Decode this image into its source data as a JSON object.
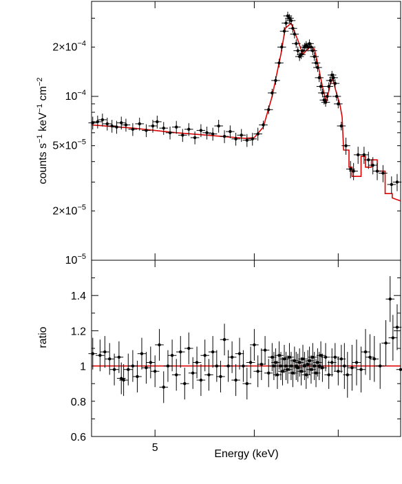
{
  "chart_data": [
    {
      "panel": "spectrum",
      "type": "scatter",
      "scale": "log-log",
      "xlim": [
        4.45,
        7.85
      ],
      "ylim": [
        1e-05,
        0.00038
      ],
      "ylabel_parts": {
        "main": "counts s",
        "exp1": "−1",
        "mid": " keV",
        "exp2": "−1",
        "end": " cm",
        "exp3": "−2"
      },
      "yticks": [
        {
          "value": 1e-05,
          "mant": "",
          "exp": "−5"
        },
        {
          "value": 2e-05,
          "mant": "2×",
          "exp": "−5"
        },
        {
          "value": 5e-05,
          "mant": "5×",
          "exp": "−5"
        },
        {
          "value": 0.0001,
          "mant": "",
          "exp": "−4"
        },
        {
          "value": 0.0002,
          "mant": "2×",
          "exp": "−4"
        }
      ],
      "xtick_values": [
        5,
        6,
        7
      ],
      "model": [
        [
          4.45,
          6.7e-05
        ],
        [
          4.8,
          6.4e-05
        ],
        [
          5.2,
          6e-05
        ],
        [
          5.5,
          5.8e-05
        ],
        [
          5.9,
          5.55e-05
        ],
        [
          6.0,
          5.6e-05
        ],
        [
          6.1,
          6.5e-05
        ],
        [
          6.2,
          0.0001
        ],
        [
          6.3,
          0.00018
        ],
        [
          6.35,
          0.00026
        ],
        [
          6.42,
          0.00028
        ],
        [
          6.5,
          0.00022
        ],
        [
          6.56,
          0.00018
        ],
        [
          6.6,
          0.00019
        ],
        [
          6.65,
          0.0002
        ],
        [
          6.7,
          0.000195
        ],
        [
          6.74,
          0.00016
        ],
        [
          6.8,
          0.000115
        ],
        [
          6.85,
          9.2e-05
        ],
        [
          6.9,
          0.00012
        ],
        [
          6.93,
          0.000128
        ],
        [
          6.97,
          0.000108
        ],
        [
          7.02,
          9e-05
        ],
        [
          7.05,
          7.5e-05
        ],
        [
          7.07,
          4.7e-05
        ],
        [
          7.14,
          4.7e-05
        ],
        [
          7.14,
          3.7e-05
        ],
        [
          7.18,
          3.7e-05
        ],
        [
          7.18,
          3.25e-05
        ],
        [
          7.3,
          3.25e-05
        ],
        [
          7.3,
          4.3e-05
        ],
        [
          7.36,
          4.3e-05
        ],
        [
          7.36,
          3.7e-05
        ],
        [
          7.44,
          3.7e-05
        ],
        [
          7.44,
          4.1e-05
        ],
        [
          7.52,
          4.1e-05
        ],
        [
          7.52,
          3.5e-05
        ],
        [
          7.63,
          3.5e-05
        ],
        [
          7.63,
          2.55e-05
        ],
        [
          7.73,
          2.55e-05
        ],
        [
          7.73,
          2.4e-05
        ],
        [
          7.85,
          2.3e-05
        ]
      ],
      "points": [
        [
          4.46,
          6.9e-05
        ],
        [
          4.5,
          7e-05
        ],
        [
          4.54,
          7.2e-05
        ],
        [
          4.58,
          6.8e-05
        ],
        [
          4.62,
          6.6e-05
        ],
        [
          4.66,
          6.5e-05
        ],
        [
          4.7,
          6.9e-05
        ],
        [
          4.74,
          6.7e-05
        ],
        [
          4.8,
          6.3e-05
        ],
        [
          4.86,
          6.8e-05
        ],
        [
          4.92,
          6.2e-05
        ],
        [
          4.98,
          6.6e-05
        ],
        [
          5.02,
          7e-05
        ],
        [
          5.08,
          6.4e-05
        ],
        [
          5.14,
          6e-05
        ],
        [
          5.2,
          6.5e-05
        ],
        [
          5.26,
          5.8e-05
        ],
        [
          5.32,
          6.3e-05
        ],
        [
          5.38,
          5.6e-05
        ],
        [
          5.44,
          6.2e-05
        ],
        [
          5.5,
          6e-05
        ],
        [
          5.56,
          5.9e-05
        ],
        [
          5.62,
          6.6e-05
        ],
        [
          5.68,
          5.7e-05
        ],
        [
          5.74,
          6.1e-05
        ],
        [
          5.8,
          5.5e-05
        ],
        [
          5.86,
          5.8e-05
        ],
        [
          5.92,
          5.4e-05
        ],
        [
          5.98,
          5.5e-05
        ],
        [
          6.04,
          5.9e-05
        ],
        [
          6.1,
          6.7e-05
        ],
        [
          6.16,
          8.3e-05
        ],
        [
          6.2,
          0.000105
        ],
        [
          6.24,
          0.000125
        ],
        [
          6.28,
          0.00016
        ],
        [
          6.31,
          0.0002
        ],
        [
          6.34,
          0.00025
        ],
        [
          6.36,
          0.00028
        ],
        [
          6.38,
          0.00031
        ],
        [
          6.4,
          0.0003
        ],
        [
          6.42,
          0.00029
        ],
        [
          6.44,
          0.00026
        ],
        [
          6.46,
          0.00024
        ],
        [
          6.48,
          0.00021
        ],
        [
          6.5,
          0.00019
        ],
        [
          6.52,
          0.000175
        ],
        [
          6.54,
          0.00018
        ],
        [
          6.56,
          0.00019
        ],
        [
          6.58,
          0.0002
        ],
        [
          6.6,
          0.000205
        ],
        [
          6.62,
          0.0002
        ],
        [
          6.64,
          0.00021
        ],
        [
          6.66,
          0.0002
        ],
        [
          6.68,
          0.00019
        ],
        [
          6.7,
          0.000175
        ],
        [
          6.72,
          0.00016
        ],
        [
          6.74,
          0.00015
        ],
        [
          6.76,
          0.00013
        ],
        [
          6.78,
          0.000115
        ],
        [
          6.8,
          0.000105
        ],
        [
          6.82,
          9.5e-05
        ],
        [
          6.84,
          9.2e-05
        ],
        [
          6.86,
          0.0001
        ],
        [
          6.88,
          0.000115
        ],
        [
          6.9,
          0.000125
        ],
        [
          6.92,
          0.000135
        ],
        [
          6.94,
          0.00013
        ],
        [
          6.96,
          0.00012
        ],
        [
          6.98,
          0.0001
        ],
        [
          7.0,
          9e-05
        ],
        [
          7.04,
          6.6e-05
        ],
        [
          7.1,
          5e-05
        ],
        [
          7.16,
          3.6e-05
        ],
        [
          7.2,
          3.5e-05
        ],
        [
          7.26,
          4.4e-05
        ],
        [
          7.34,
          4.4e-05
        ],
        [
          7.4,
          4.1e-05
        ],
        [
          7.46,
          3.8e-05
        ],
        [
          7.52,
          3.5e-05
        ],
        [
          7.6,
          3.4e-05
        ],
        [
          7.72,
          2.9e-05
        ],
        [
          7.8,
          3e-05
        ]
      ],
      "point_color": "#000000",
      "model_color": "#dd0000"
    },
    {
      "panel": "ratio",
      "type": "scatter",
      "xlim": [
        4.45,
        7.85
      ],
      "ylim": [
        0.6,
        1.6
      ],
      "ylabel": "ratio",
      "xlabel": "Energy (keV)",
      "yticks": [
        0.6,
        0.8,
        1,
        1.2,
        1.4
      ],
      "ytick_labels": [
        "0.6",
        "0.8",
        "1",
        "1.2",
        "1.4"
      ],
      "xticks": [
        5
      ],
      "xtick_labels": [
        "5"
      ],
      "xtick_values": [
        5,
        6,
        7
      ],
      "reference_line": 1,
      "points": [
        [
          4.46,
          1.07
        ],
        [
          4.52,
          1.06
        ],
        [
          4.56,
          1.08
        ],
        [
          4.6,
          1.04
        ],
        [
          4.64,
          0.98
        ],
        [
          4.68,
          1.05
        ],
        [
          4.7,
          0.93
        ],
        [
          4.72,
          0.92
        ],
        [
          4.76,
          0.98
        ],
        [
          4.8,
          1.0
        ],
        [
          4.84,
          0.94
        ],
        [
          4.88,
          1.07
        ],
        [
          4.92,
          0.99
        ],
        [
          4.96,
          1.02
        ],
        [
          5.0,
          0.97
        ],
        [
          5.04,
          1.12
        ],
        [
          5.08,
          0.88
        ],
        [
          5.12,
          1.0
        ],
        [
          5.16,
          1.06
        ],
        [
          5.2,
          0.95
        ],
        [
          5.24,
          1.08
        ],
        [
          5.28,
          0.9
        ],
        [
          5.32,
          1.1
        ],
        [
          5.36,
          0.96
        ],
        [
          5.4,
          1.02
        ],
        [
          5.44,
          0.92
        ],
        [
          5.48,
          1.06
        ],
        [
          5.52,
          0.95
        ],
        [
          5.56,
          1.08
        ],
        [
          5.6,
          1.0
        ],
        [
          5.64,
          0.94
        ],
        [
          5.68,
          1.15
        ],
        [
          5.72,
          1.0
        ],
        [
          5.76,
          1.05
        ],
        [
          5.8,
          0.92
        ],
        [
          5.84,
          1.07
        ],
        [
          5.88,
          1.0
        ],
        [
          5.92,
          0.9
        ],
        [
          5.96,
          1.02
        ],
        [
          6.0,
          1.12
        ],
        [
          6.04,
          0.97
        ],
        [
          6.08,
          1.01
        ],
        [
          6.12,
          1.09
        ],
        [
          6.16,
          0.96
        ],
        [
          6.2,
          1.05
        ],
        [
          6.22,
          1.0
        ],
        [
          6.24,
          1.02
        ],
        [
          6.26,
          0.95
        ],
        [
          6.28,
          1.06
        ],
        [
          6.3,
          1.0
        ],
        [
          6.32,
          0.97
        ],
        [
          6.34,
          1.04
        ],
        [
          6.36,
          1.0
        ],
        [
          6.38,
          0.98
        ],
        [
          6.4,
          1.05
        ],
        [
          6.42,
          1.0
        ],
        [
          6.44,
          0.96
        ],
        [
          6.46,
          1.03
        ],
        [
          6.48,
          1.0
        ],
        [
          6.5,
          0.99
        ],
        [
          6.52,
          1.02
        ],
        [
          6.54,
          0.97
        ],
        [
          6.56,
          1.04
        ],
        [
          6.58,
          1.0
        ],
        [
          6.6,
          0.95
        ],
        [
          6.62,
          1.01
        ],
        [
          6.64,
          1.03
        ],
        [
          6.66,
          0.98
        ],
        [
          6.68,
          1.05
        ],
        [
          6.7,
          1.0
        ],
        [
          6.72,
          0.96
        ],
        [
          6.74,
          1.02
        ],
        [
          6.76,
          1.0
        ],
        [
          6.78,
          1.06
        ],
        [
          6.8,
          0.99
        ],
        [
          6.84,
          1.05
        ],
        [
          6.88,
          0.95
        ],
        [
          6.92,
          1.02
        ],
        [
          6.96,
          1.05
        ],
        [
          7.0,
          0.97
        ],
        [
          7.04,
          1.04
        ],
        [
          7.08,
          1.0
        ],
        [
          7.12,
          0.95
        ],
        [
          7.18,
          0.99
        ],
        [
          7.24,
          1.02
        ],
        [
          7.3,
          0.98
        ],
        [
          7.36,
          1.08
        ],
        [
          7.42,
          1.05
        ],
        [
          7.48,
          1.04
        ],
        [
          7.56,
          1.0
        ],
        [
          7.64,
          1.13
        ],
        [
          7.7,
          1.38
        ],
        [
          7.74,
          1.16
        ],
        [
          7.8,
          1.22
        ],
        [
          7.85,
          0.98
        ]
      ],
      "point_color": "#000000",
      "model_color": "#dd0000"
    }
  ]
}
